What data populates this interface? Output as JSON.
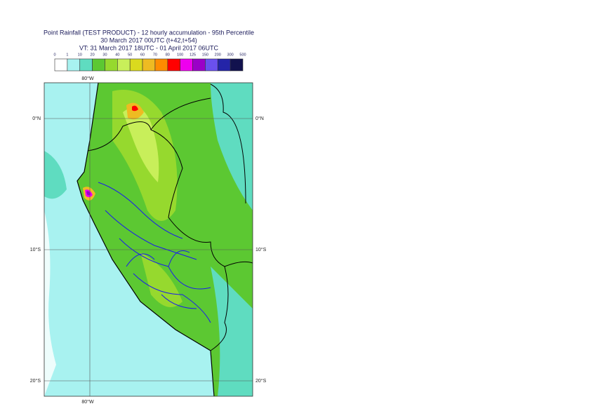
{
  "header": {
    "title": "Point Rainfall (TEST PRODUCT) - 12 hourly accumulation - 95th Percentile",
    "subtitle": "30 March 2017 00UTC (t+42,t+54)",
    "valid_time": "VT: 31 March 2017 18UTC - 01 April 2017 06UTC"
  },
  "colorbar": {
    "labels": [
      0,
      1,
      10,
      20,
      30,
      40,
      50,
      60,
      70,
      80,
      100,
      125,
      150,
      200,
      300,
      500
    ],
    "colors": [
      "#ffffff",
      "#a8f2f0",
      "#5fdcc0",
      "#5cc832",
      "#96d92e",
      "#c8ef5a",
      "#dada1e",
      "#eebb22",
      "#ff8c00",
      "#ff0000",
      "#ee00ee",
      "#9a00c8",
      "#6a50ee",
      "#2424a8",
      "#12124e"
    ]
  },
  "map": {
    "lon_labels": [
      "80°W"
    ],
    "lat_labels": [
      "0°N",
      "10°S",
      "20°S"
    ]
  }
}
